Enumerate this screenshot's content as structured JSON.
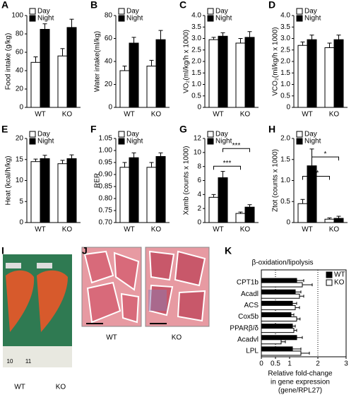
{
  "chart_data": [
    {
      "type": "bar",
      "panel": "A",
      "ylabel": "Food intake (g/kg)",
      "categories": [
        "WT",
        "KO"
      ],
      "series": [
        {
          "name": "Day",
          "color": "#ffffff",
          "values": [
            49,
            56
          ],
          "errors": [
            6,
            8
          ]
        },
        {
          "name": "Night",
          "color": "#000000",
          "values": [
            85,
            87
          ],
          "errors": [
            6,
            9
          ]
        }
      ],
      "ylim": [
        0,
        100
      ],
      "yticks": [
        0,
        20,
        40,
        60,
        80,
        100
      ]
    },
    {
      "type": "bar",
      "panel": "B",
      "ylabel": "Water intake(ml/kg)",
      "categories": [
        "WT",
        "KO"
      ],
      "series": [
        {
          "name": "Day",
          "color": "#ffffff",
          "values": [
            32,
            36
          ],
          "errors": [
            4,
            5
          ]
        },
        {
          "name": "Night",
          "color": "#000000",
          "values": [
            56,
            59
          ],
          "errors": [
            5,
            8
          ]
        }
      ],
      "ylim": [
        0,
        80
      ],
      "yticks": [
        0,
        20,
        40,
        60,
        80
      ]
    },
    {
      "type": "bar",
      "panel": "C",
      "ylabel": "VO₂(ml/kg/h x 1000)",
      "categories": [
        "WT",
        "KO"
      ],
      "series": [
        {
          "name": "Day",
          "color": "#ffffff",
          "values": [
            2.95,
            2.8
          ],
          "errors": [
            0.1,
            0.2
          ]
        },
        {
          "name": "Night",
          "color": "#000000",
          "values": [
            3.1,
            3.05
          ],
          "errors": [
            0.15,
            0.25
          ]
        }
      ],
      "ylim": [
        0,
        4
      ],
      "yticks": [
        0,
        0.5,
        {
          "value": 1,
          "label": "1.0"
        },
        1.5,
        {
          "value": 2,
          "label": "2.0"
        },
        2.5,
        {
          "value": 3,
          "label": "3.0"
        },
        3.5,
        {
          "value": 4,
          "label": "4.0"
        }
      ]
    },
    {
      "type": "bar",
      "panel": "D",
      "ylabel": "VCO₂(ml/kg/h x 1000)",
      "categories": [
        "WT",
        "KO"
      ],
      "series": [
        {
          "name": "Day",
          "color": "#ffffff",
          "values": [
            2.7,
            2.6
          ],
          "errors": [
            0.15,
            0.2
          ]
        },
        {
          "name": "Night",
          "color": "#000000",
          "values": [
            2.95,
            2.95
          ],
          "errors": [
            0.2,
            0.2
          ]
        }
      ],
      "ylim": [
        0,
        4
      ],
      "yticks": [
        0,
        0.5,
        {
          "value": 1,
          "label": "1.0"
        },
        1.5,
        {
          "value": 2,
          "label": "2.0"
        },
        2.5,
        {
          "value": 3,
          "label": "3.0"
        },
        3.5,
        {
          "value": 4,
          "label": "4.0"
        }
      ]
    },
    {
      "type": "bar",
      "panel": "E",
      "ylabel": "Heat (kcal/h/kg)",
      "categories": [
        "WT",
        "KO"
      ],
      "series": [
        {
          "name": "Day",
          "color": "#ffffff",
          "values": [
            14.5,
            14
          ],
          "errors": [
            0.6,
            0.8
          ]
        },
        {
          "name": "Night",
          "color": "#000000",
          "values": [
            15.2,
            15.2
          ],
          "errors": [
            0.8,
            0.9
          ]
        }
      ],
      "ylim": [
        0,
        20
      ],
      "yticks": [
        0,
        5,
        10,
        15,
        20
      ]
    },
    {
      "type": "bar",
      "panel": "F",
      "ylabel": "RER",
      "categories": [
        "WT",
        "KO"
      ],
      "series": [
        {
          "name": "Day",
          "color": "#ffffff",
          "values": [
            0.93,
            0.93
          ],
          "errors": [
            0.02,
            0.02
          ]
        },
        {
          "name": "Night",
          "color": "#000000",
          "values": [
            0.97,
            0.975
          ],
          "errors": [
            0.02,
            0.015
          ]
        }
      ],
      "ylim": [
        0.7,
        1.05
      ],
      "yticks": [
        {
          "value": 0.7,
          "label": "0.70"
        },
        0.75,
        {
          "value": 0.8,
          "label": "0.80"
        },
        0.85,
        {
          "value": 0.9,
          "label": "0.90"
        },
        0.95,
        {
          "value": 1,
          "label": "1.00"
        },
        1.05
      ]
    },
    {
      "type": "bar",
      "panel": "G",
      "ylabel": "Xamb (counts x 1000)",
      "categories": [
        "WT",
        "KO"
      ],
      "series": [
        {
          "name": "Day",
          "color": "#ffffff",
          "values": [
            3.6,
            1.3
          ],
          "errors": [
            0.4,
            0.2
          ]
        },
        {
          "name": "Night",
          "color": "#000000",
          "values": [
            6.4,
            2.2
          ],
          "errors": [
            0.9,
            0.35
          ]
        }
      ],
      "ylim": [
        0,
        12
      ],
      "yticks": [
        0,
        2,
        4,
        6,
        8,
        10,
        12
      ],
      "significance": [
        "***",
        "***"
      ]
    },
    {
      "type": "bar",
      "panel": "H",
      "ylabel": "Ztot (counts x 1000)",
      "categories": [
        "WT",
        "KO"
      ],
      "series": [
        {
          "name": "Day",
          "color": "#ffffff",
          "values": [
            0.45,
            0.08
          ],
          "errors": [
            0.1,
            0.03
          ]
        },
        {
          "name": "Night",
          "color": "#000000",
          "values": [
            1.35,
            0.1
          ],
          "errors": [
            0.4,
            0.05
          ]
        }
      ],
      "ylim": [
        0,
        2
      ],
      "yticks": [
        0,
        0.5,
        {
          "value": 1,
          "label": "1.0"
        },
        1.5,
        {
          "value": 2,
          "label": "2.0"
        }
      ],
      "significance": [
        "**",
        "*"
      ]
    },
    {
      "type": "hbar",
      "panel": "K",
      "title": "β-oxidation/lipolysis",
      "xlabel": [
        "Relative fold-change",
        "in gene expression",
        "(gene/RPL27)"
      ],
      "categories": [
        "CPT1b",
        "Acadl",
        "ACS",
        "Cox5b",
        "PPARβ/δ",
        "Acadvl",
        "LPL"
      ],
      "series": [
        {
          "name": "WT",
          "color": "#000000",
          "values": [
            1.25,
            1.2,
            1.1,
            1.05,
            1.1,
            1.25,
            1.1
          ],
          "errors": [
            0.25,
            0.2,
            0.15,
            0.1,
            0.1,
            0.2,
            0.3
          ]
        },
        {
          "name": "KO",
          "color": "#ffffff",
          "values": [
            1.45,
            1.35,
            1.2,
            1.25,
            1.15,
            0.7,
            1.4
          ],
          "errors": [
            0.35,
            0.15,
            0.15,
            0.12,
            0.1,
            0.15,
            0.3
          ]
        }
      ],
      "xlim": [
        0,
        3
      ],
      "xticks": [
        0,
        0.5,
        1,
        2,
        3
      ],
      "reference_lines": [
        0.5,
        2
      ]
    }
  ],
  "images": [
    {
      "panel": "I",
      "labels": [
        "WT",
        "KO"
      ],
      "ruler_labels": [
        "10",
        "11"
      ]
    },
    {
      "panel": "J",
      "labels": [
        "WT",
        "KO"
      ]
    }
  ]
}
